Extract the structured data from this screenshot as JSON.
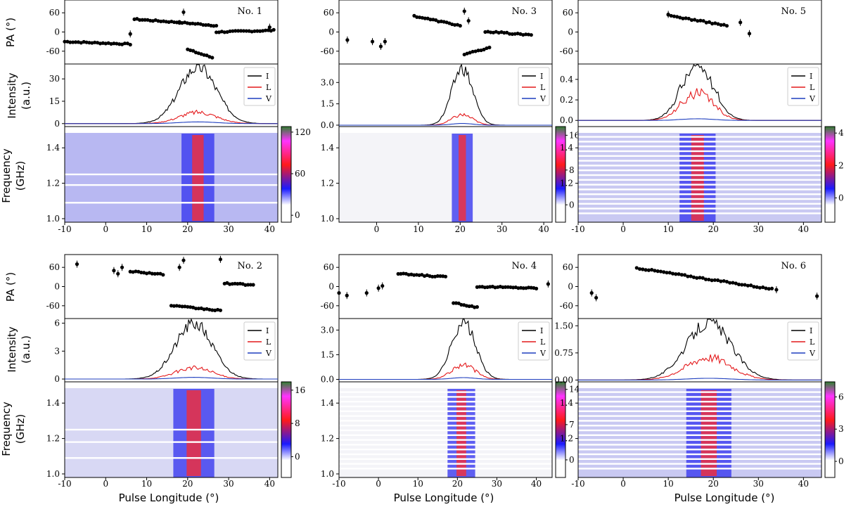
{
  "figure": {
    "xlabel": "Pulse Longitude (°)",
    "row_ylabels": {
      "pa": "PA (°)",
      "intensity_line1": "Intensity",
      "intensity_line2": "(a.u.)",
      "frequency_line1": "Frequency",
      "frequency_line2": "(GHz)"
    },
    "legend": [
      "I",
      "L",
      "V"
    ],
    "colors": {
      "I": "#000000",
      "L": "#e41a1c",
      "V": "#1f3fbf"
    },
    "colormap": [
      "#ffffff",
      "#1a1aff",
      "#ff1a1a",
      "#ff33ff",
      "#2f7f2f"
    ]
  },
  "chart_data": [
    {
      "type": "line",
      "title": "No. 1",
      "xlim": [
        -10,
        42
      ],
      "xticks": [
        -10,
        0,
        10,
        20,
        30,
        40
      ],
      "pa": {
        "ylim": [
          -100,
          100
        ],
        "yticks": [
          60,
          0,
          -60
        ],
        "segments": [
          {
            "x0": -10,
            "x1": 6,
            "y0": -30,
            "y1": -38
          },
          {
            "x0": 7,
            "x1": 18,
            "y0": 40,
            "y1": 30
          },
          {
            "x0": 18,
            "x1": 27,
            "y0": 30,
            "y1": 20
          },
          {
            "x0": 20,
            "x1": 26,
            "y0": -55,
            "y1": -80
          },
          {
            "x0": 27,
            "x1": 41,
            "y0": 0,
            "y1": 5
          }
        ],
        "points": [
          {
            "x": 6,
            "y": -6
          },
          {
            "x": 40,
            "y": 15
          },
          {
            "x": 19,
            "y": 62
          }
        ]
      },
      "intensity": {
        "ylim": [
          -2,
          40
        ],
        "yticks": [
          0,
          15,
          30
        ],
        "peak_x": 22.5,
        "peak_I": 38,
        "width": 4.5,
        "lfrac": 0.2,
        "secondary": []
      },
      "dynamic": {
        "ylim": [
          1.0,
          1.5
        ],
        "yticks": [
          1.0,
          1.2,
          1.4
        ],
        "cbar": [
          -10,
          128
        ],
        "cbar_ticks": [
          120,
          60,
          0
        ],
        "bg": "#b8b8f2",
        "center": 22.5,
        "halfwidth": 4,
        "gaps": [
          1.25,
          1.19,
          1.09
        ],
        "dense": false
      }
    },
    {
      "type": "line",
      "title": "No. 3",
      "xlim": [
        -9,
        42
      ],
      "xticks": [
        0,
        10,
        20,
        30,
        40
      ],
      "pa": {
        "ylim": [
          -100,
          100
        ],
        "yticks": [
          60,
          0,
          -60
        ],
        "segments": [
          {
            "x0": 9,
            "x1": 20,
            "y0": 50,
            "y1": 20
          },
          {
            "x0": 21,
            "x1": 27,
            "y0": -70,
            "y1": -50
          },
          {
            "x0": 26,
            "x1": 37,
            "y0": 2,
            "y1": -10
          }
        ],
        "points": [
          {
            "x": -7,
            "y": -25
          },
          {
            "x": -1,
            "y": -30
          },
          {
            "x": 1,
            "y": -45
          },
          {
            "x": 2,
            "y": -30
          },
          {
            "x": 21,
            "y": 65
          },
          {
            "x": 22,
            "y": 35
          }
        ]
      },
      "intensity": {
        "ylim": [
          -0.1,
          4.3
        ],
        "yticks": [
          0.0,
          1.5,
          3.0
        ],
        "peak_x": 20.5,
        "peak_I": 4.0,
        "width": 2.5,
        "lfrac": 0.18,
        "secondary": []
      },
      "dynamic": {
        "ylim": [
          1.0,
          1.5
        ],
        "yticks": [
          1.0,
          1.2,
          1.4
        ],
        "cbar": [
          -4,
          18
        ],
        "cbar_ticks": [
          16,
          8,
          0
        ],
        "bg": "#f4f4f8",
        "center": 20.5,
        "halfwidth": 2.5,
        "gaps": [],
        "dense": false
      }
    },
    {
      "type": "line",
      "title": "No. 5",
      "xlim": [
        -10,
        44
      ],
      "xticks": [
        -10,
        0,
        10,
        20,
        30,
        40
      ],
      "pa": {
        "ylim": [
          -100,
          100
        ],
        "yticks": [
          60,
          0,
          -60
        ],
        "segments": [
          {
            "x0": 10,
            "x1": 23,
            "y0": 52,
            "y1": 20
          }
        ],
        "points": [
          {
            "x": 26,
            "y": 30
          },
          {
            "x": 28,
            "y": -5
          },
          {
            "x": 10,
            "y": 55
          }
        ]
      },
      "intensity": {
        "ylim": [
          -0.06,
          0.55
        ],
        "yticks": [
          0.0,
          0.2,
          0.4
        ],
        "peak_x": 16.5,
        "peak_I": 0.53,
        "width": 3.5,
        "lfrac": 0.5,
        "secondary": [
          {
            "x": 13,
            "h": 0.33
          },
          {
            "x": 20,
            "h": 0.32
          }
        ]
      },
      "dynamic": {
        "ylim": [
          1.0,
          1.5
        ],
        "yticks": [
          1.2,
          1.4
        ],
        "cbar": [
          -1.5,
          4.4
        ],
        "cbar_ticks": [
          4,
          2,
          0
        ],
        "bg": "#c9c9f2",
        "center": 16.5,
        "halfwidth": 4,
        "gaps": [],
        "dense": true
      }
    },
    {
      "type": "line",
      "title": "No. 2",
      "xlim": [
        -10,
        42
      ],
      "xticks": [
        -10,
        0,
        10,
        20,
        30,
        40
      ],
      "pa": {
        "ylim": [
          -100,
          100
        ],
        "yticks": [
          60,
          0,
          -60
        ],
        "segments": [
          {
            "x0": 6,
            "x1": 14,
            "y0": 48,
            "y1": 38
          },
          {
            "x0": 16,
            "x1": 28,
            "y0": -60,
            "y1": -75
          },
          {
            "x0": 29,
            "x1": 36,
            "y0": 10,
            "y1": 5
          }
        ],
        "points": [
          {
            "x": -7,
            "y": 70
          },
          {
            "x": 2,
            "y": 50
          },
          {
            "x": 3,
            "y": 40
          },
          {
            "x": 4,
            "y": 60
          },
          {
            "x": 19,
            "y": 82
          },
          {
            "x": 18,
            "y": 60
          },
          {
            "x": 28,
            "y": 85
          }
        ]
      },
      "intensity": {
        "ylim": [
          -0.3,
          6.5
        ],
        "yticks": [
          0,
          3,
          6
        ],
        "peak_x": 21.5,
        "peak_I": 6.0,
        "width": 4.5,
        "lfrac": 0.2,
        "secondary": []
      },
      "dynamic": {
        "ylim": [
          1.0,
          1.5
        ],
        "yticks": [
          1.0,
          1.2,
          1.4
        ],
        "cbar": [
          -5,
          18
        ],
        "cbar_ticks": [
          16,
          8,
          0
        ],
        "bg": "#d8d8f4",
        "center": 21.5,
        "halfwidth": 5,
        "gaps": [
          1.25,
          1.18,
          1.09
        ],
        "dense": false
      }
    },
    {
      "type": "line",
      "title": "No. 4",
      "xlim": [
        -10,
        44
      ],
      "xticks": [
        -10,
        0,
        10,
        20,
        30,
        40
      ],
      "pa": {
        "ylim": [
          -100,
          100
        ],
        "yticks": [
          60,
          0,
          -60
        ],
        "segments": [
          {
            "x0": 5,
            "x1": 17,
            "y0": 40,
            "y1": 30
          },
          {
            "x0": 19,
            "x1": 25,
            "y0": -50,
            "y1": -65
          },
          {
            "x0": 25,
            "x1": 40,
            "y0": 0,
            "y1": -5
          }
        ],
        "points": [
          {
            "x": -10,
            "y": -20
          },
          {
            "x": -8,
            "y": -28
          },
          {
            "x": -3,
            "y": -20
          },
          {
            "x": 0,
            "y": -5
          },
          {
            "x": 1,
            "y": 2
          },
          {
            "x": 43,
            "y": 8
          }
        ]
      },
      "intensity": {
        "ylim": [
          -0.15,
          3.7
        ],
        "yticks": [
          0.0,
          1.5,
          3.0
        ],
        "peak_x": 21.5,
        "peak_I": 3.5,
        "width": 3.0,
        "lfrac": 0.25,
        "secondary": []
      },
      "dynamic": {
        "ylim": [
          1.0,
          1.5
        ],
        "yticks": [
          1.0,
          1.2,
          1.4
        ],
        "cbar": [
          -3.5,
          15.5
        ],
        "cbar_ticks": [
          14,
          7,
          0
        ],
        "bg": "#f4f4f8",
        "center": 21,
        "halfwidth": 3.5,
        "gaps": [],
        "dense": true
      }
    },
    {
      "type": "line",
      "title": "No. 6",
      "xlim": [
        -10,
        44
      ],
      "xticks": [
        -10,
        0,
        10,
        20,
        30,
        40
      ],
      "pa": {
        "ylim": [
          -100,
          100
        ],
        "yticks": [
          60,
          0,
          -60
        ],
        "segments": [
          {
            "x0": 3,
            "x1": 33,
            "y0": 58,
            "y1": -8
          }
        ],
        "points": [
          {
            "x": -7,
            "y": -20
          },
          {
            "x": -6,
            "y": -35
          },
          {
            "x": 43,
            "y": -30
          },
          {
            "x": 34,
            "y": -10
          }
        ]
      },
      "intensity": {
        "ylim": [
          -0.05,
          1.7
        ],
        "yticks": [
          0.0,
          0.75,
          1.5
        ],
        "peak_x": 19,
        "peak_I": 1.58,
        "width": 5.0,
        "lfrac": 0.4,
        "secondary": []
      },
      "dynamic": {
        "ylim": [
          1.0,
          1.5
        ],
        "yticks": [
          1.2,
          1.4
        ],
        "cbar": [
          -1.5,
          7.4
        ],
        "cbar_ticks": [
          6,
          3,
          0
        ],
        "bg": "#c9c9f2",
        "center": 19,
        "halfwidth": 5,
        "gaps": [],
        "dense": true
      }
    }
  ]
}
